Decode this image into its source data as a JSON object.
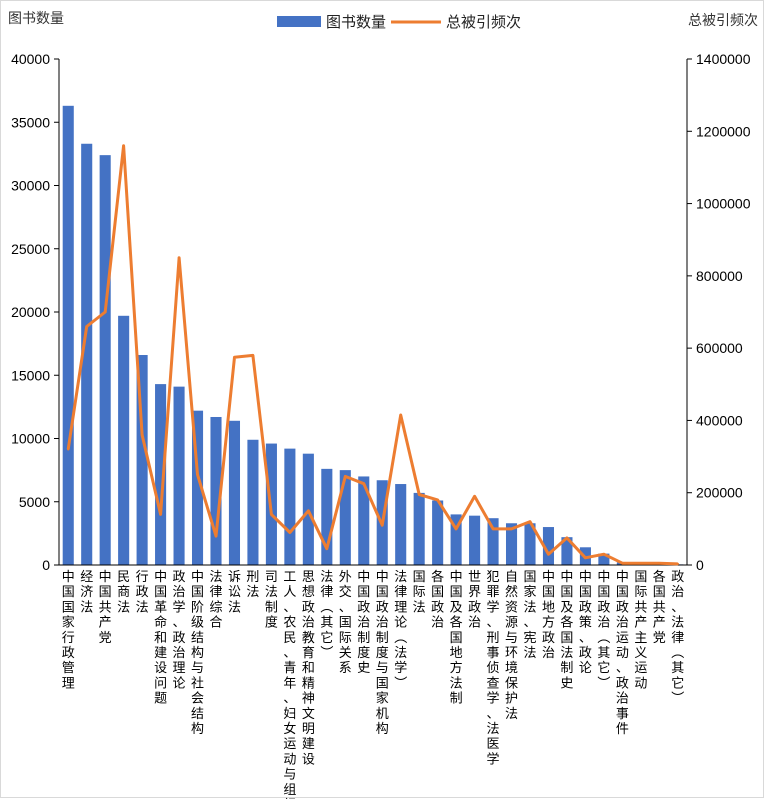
{
  "chart_data": {
    "type": "bar",
    "categories": [
      "中国国家行政管理",
      "经济法",
      "中国共产党",
      "民商法",
      "行政法",
      "中国革命和建设问题",
      "政治学、政治理论",
      "中国阶级结构与社会结构",
      "法律综合",
      "诉讼法",
      "刑法",
      "司法制度",
      "工人、农民、青年、妇女运动与组织",
      "思想政治教育和精神文明建设",
      "法律（其它）",
      "外交、国际关系",
      "中国政治制度史",
      "中国政治制度与国家机构",
      "法律理论（法学）",
      "国际法",
      "各国政治",
      "中国及各国地方法制",
      "世界政治",
      "犯罪学、刑事侦查学、法医学",
      "自然资源与环境保护法",
      "国家法、宪法",
      "中国地方政治",
      "中国及各国法制史",
      "中国政策、政论",
      "中国政治（其它）",
      "中国政治运动、政治事件",
      "国际共产主义运动",
      "各国共产党",
      "政治、法律（其它）"
    ],
    "series": [
      {
        "name": "图书数量",
        "axis": "left",
        "type": "bar",
        "color": "#4472c4",
        "values": [
          36300,
          33300,
          32400,
          19700,
          16600,
          14300,
          14100,
          12200,
          11700,
          11400,
          9900,
          9600,
          9200,
          8800,
          7600,
          7500,
          7000,
          6700,
          6400,
          5700,
          5100,
          4000,
          3900,
          3700,
          3300,
          3300,
          3000,
          2200,
          1400,
          900,
          200,
          150,
          100,
          50
        ]
      },
      {
        "name": "总被引频次",
        "axis": "right",
        "type": "line",
        "color": "#ed7d31",
        "values": [
          320000,
          660000,
          700000,
          1160000,
          360000,
          140000,
          850000,
          250000,
          80000,
          575000,
          580000,
          140000,
          90000,
          150000,
          45000,
          245000,
          225000,
          110000,
          415000,
          195000,
          180000,
          100000,
          190000,
          100000,
          100000,
          120000,
          30000,
          75000,
          20000,
          30000,
          5000,
          5000,
          5000,
          3000
        ]
      }
    ],
    "y_left": {
      "label": "图书数量",
      "min": 0,
      "max": 40000,
      "ticks": [
        0,
        5000,
        10000,
        15000,
        20000,
        25000,
        30000,
        35000,
        40000
      ]
    },
    "y_right": {
      "label": "总被引频次",
      "min": 0,
      "max": 1400000,
      "ticks": [
        0,
        200000,
        400000,
        600000,
        800000,
        1000000,
        1200000,
        1400000
      ]
    },
    "legend": {
      "position": "top-center"
    },
    "grid": false
  }
}
